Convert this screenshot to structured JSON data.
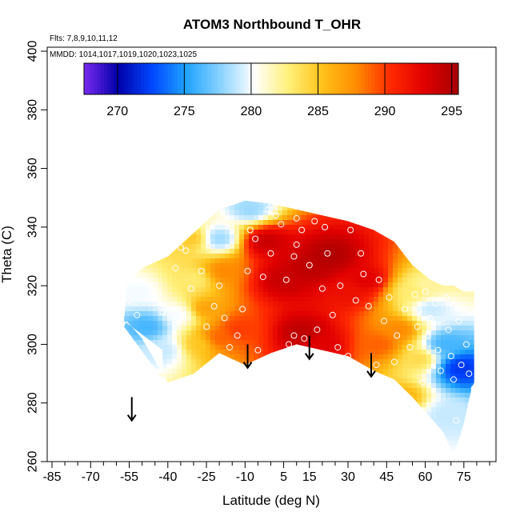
{
  "chart_data": {
    "type": "heatmap",
    "title": "ATOM3 Northbound T_OHR",
    "annotations": {
      "flights": "Flts: 7,8,9,10,11,12",
      "dates": "MMDD: 1014,1017,1019,1020,1023,1025"
    },
    "xlabel": "Latitude (deg N)",
    "ylabel": "Theta (C)",
    "xlim": [
      -85,
      85
    ],
    "ylim": [
      260,
      400
    ],
    "x_ticks": [
      -85,
      -70,
      -55,
      -40,
      -25,
      -10,
      5,
      15,
      30,
      45,
      60,
      75
    ],
    "x_tick_labels": [
      "-85",
      "-70",
      "-55",
      "-40",
      "-25",
      "-10",
      "5",
      "15",
      "30",
      "45",
      "60",
      "75"
    ],
    "y_ticks": [
      260,
      280,
      300,
      320,
      340,
      360,
      380,
      400
    ],
    "y_tick_labels": [
      "260",
      "280",
      "300",
      "320",
      "340",
      "360",
      "380",
      "400"
    ],
    "colorbar": {
      "min": 267.5,
      "max": 295.5,
      "ticks": [
        270,
        275,
        280,
        285,
        290,
        295
      ],
      "tick_labels": [
        "270",
        "275",
        "280",
        "285",
        "290",
        "295"
      ],
      "colors": [
        "#7a2af0",
        "#0000a8",
        "#0047ff",
        "#1fa3ff",
        "#88d2ff",
        "#ffffff",
        "#fff07a",
        "#ffc21a",
        "#ff8c00",
        "#ff2a00",
        "#e10000",
        "#a50000"
      ]
    },
    "coverage_envelope": [
      {
        "lat": -42,
        "top": 298,
        "bottom": 288
      },
      {
        "lat": -57,
        "top": 308,
        "bottom": 306
      },
      {
        "lat": -56,
        "top": 320,
        "bottom": 308
      },
      {
        "lat": -50,
        "top": 326,
        "bottom": 302
      },
      {
        "lat": -40,
        "top": 330,
        "bottom": 287
      },
      {
        "lat": -30,
        "top": 338,
        "bottom": 290
      },
      {
        "lat": -20,
        "top": 346,
        "bottom": 297
      },
      {
        "lat": -10,
        "top": 349,
        "bottom": 293
      },
      {
        "lat": 0,
        "top": 348,
        "bottom": 297
      },
      {
        "lat": 10,
        "top": 346,
        "bottom": 300
      },
      {
        "lat": 20,
        "top": 344,
        "bottom": 298
      },
      {
        "lat": 30,
        "top": 342,
        "bottom": 296
      },
      {
        "lat": 40,
        "top": 339,
        "bottom": 291
      },
      {
        "lat": 48,
        "top": 335,
        "bottom": 288
      },
      {
        "lat": 55,
        "top": 327,
        "bottom": 282
      },
      {
        "lat": 62,
        "top": 322,
        "bottom": 275
      },
      {
        "lat": 67,
        "top": 320,
        "bottom": 270
      },
      {
        "lat": 71,
        "top": 320,
        "bottom": 262
      },
      {
        "lat": 75,
        "top": 318,
        "bottom": 273
      },
      {
        "lat": 78,
        "top": 318,
        "bottom": 285
      },
      {
        "lat": 79,
        "top": 318,
        "bottom": 287
      }
    ],
    "field_blobs": [
      {
        "lat": 5,
        "theta": 322,
        "t": 294,
        "w": 1.0
      },
      {
        "lat": 15,
        "theta": 326,
        "t": 294.5,
        "w": 1.0
      },
      {
        "lat": 23,
        "theta": 330,
        "t": 295,
        "w": 1.0
      },
      {
        "lat": -2,
        "theta": 335,
        "t": 294,
        "w": 0.9
      },
      {
        "lat": 12,
        "theta": 304,
        "t": 294.5,
        "w": 1.0
      },
      {
        "lat": 20,
        "theta": 300,
        "t": 293,
        "w": 0.9
      },
      {
        "lat": 30,
        "theta": 318,
        "t": 292,
        "w": 0.8
      },
      {
        "lat": 37,
        "theta": 322,
        "t": 293,
        "w": 0.8
      },
      {
        "lat": -12,
        "theta": 305,
        "t": 290,
        "w": 0.8
      },
      {
        "lat": -20,
        "theta": 302,
        "t": 289,
        "w": 0.7
      },
      {
        "lat": 42,
        "theta": 300,
        "t": 289,
        "w": 0.8
      },
      {
        "lat": 50,
        "theta": 305,
        "t": 288,
        "w": 0.7
      },
      {
        "lat": -18,
        "theta": 325,
        "t": 288,
        "w": 0.6
      },
      {
        "lat": -30,
        "theta": 336,
        "t": 285,
        "w": 0.5
      },
      {
        "lat": -20,
        "theta": 336,
        "t": 278,
        "w": 0.8
      },
      {
        "lat": -8,
        "theta": 346,
        "t": 278,
        "w": 0.7
      },
      {
        "lat": -30,
        "theta": 322,
        "t": 283,
        "w": 0.6
      },
      {
        "lat": -36,
        "theta": 310,
        "t": 280,
        "w": 0.7
      },
      {
        "lat": -48,
        "theta": 306,
        "t": 276,
        "w": 1.0
      },
      {
        "lat": -42,
        "theta": 298,
        "t": 279,
        "w": 0.9
      },
      {
        "lat": -52,
        "theta": 318,
        "t": 280,
        "w": 0.8
      },
      {
        "lat": -28,
        "theta": 300,
        "t": 285,
        "w": 0.6
      },
      {
        "lat": -26,
        "theta": 312,
        "t": 287,
        "w": 0.4
      },
      {
        "lat": 55,
        "theta": 318,
        "t": 283,
        "w": 0.9
      },
      {
        "lat": 62,
        "theta": 312,
        "t": 279,
        "w": 0.9
      },
      {
        "lat": 68,
        "theta": 300,
        "t": 276,
        "w": 1.0
      },
      {
        "lat": 74,
        "theta": 292,
        "t": 272,
        "w": 1.2
      },
      {
        "lat": 68,
        "theta": 276,
        "t": 279,
        "w": 0.8
      },
      {
        "lat": 58,
        "theta": 295,
        "t": 284,
        "w": 0.7
      },
      {
        "lat": 52,
        "theta": 282,
        "t": 286,
        "w": 0.5
      },
      {
        "lat": 60,
        "theta": 320,
        "t": 282,
        "w": 0.7
      }
    ],
    "observation_points": [
      [
        -53,
        321
      ],
      [
        -55,
        315
      ],
      [
        -52,
        310
      ],
      [
        -45,
        320
      ],
      [
        -44,
        317
      ],
      [
        -42,
        311
      ],
      [
        -37,
        326
      ],
      [
        -35,
        333
      ],
      [
        -33,
        332
      ],
      [
        -31,
        319
      ],
      [
        -27,
        325
      ],
      [
        -25,
        306
      ],
      [
        -22,
        313
      ],
      [
        -20,
        320
      ],
      [
        -18,
        309
      ],
      [
        -16,
        299
      ],
      [
        -13,
        303
      ],
      [
        -11,
        312
      ],
      [
        -9,
        325
      ],
      [
        -8,
        339
      ],
      [
        -6,
        336
      ],
      [
        -5,
        298
      ],
      [
        -3,
        323
      ],
      [
        -1,
        346
      ],
      [
        0,
        331
      ],
      [
        2,
        344
      ],
      [
        4,
        341
      ],
      [
        6,
        322
      ],
      [
        7,
        300
      ],
      [
        9,
        303
      ],
      [
        9,
        330
      ],
      [
        10,
        343
      ],
      [
        10,
        334
      ],
      [
        12,
        339
      ],
      [
        13,
        302
      ],
      [
        14,
        296
      ],
      [
        15,
        327
      ],
      [
        17,
        342
      ],
      [
        18,
        305
      ],
      [
        20,
        319
      ],
      [
        21,
        340
      ],
      [
        22,
        331
      ],
      [
        24,
        310
      ],
      [
        26,
        299
      ],
      [
        27,
        320
      ],
      [
        30,
        296
      ],
      [
        31,
        339
      ],
      [
        33,
        315
      ],
      [
        35,
        331
      ],
      [
        36,
        324
      ],
      [
        38,
        313
      ],
      [
        41,
        293
      ],
      [
        42,
        322
      ],
      [
        44,
        308
      ],
      [
        46,
        316
      ],
      [
        48,
        294
      ],
      [
        49,
        303
      ],
      [
        52,
        312
      ],
      [
        54,
        299
      ],
      [
        56,
        317
      ],
      [
        57,
        306
      ],
      [
        59,
        287
      ],
      [
        60,
        318
      ],
      [
        61,
        303
      ],
      [
        62,
        309
      ],
      [
        64,
        314
      ],
      [
        65,
        298
      ],
      [
        66,
        291
      ],
      [
        68,
        316
      ],
      [
        69,
        305
      ],
      [
        70,
        296
      ],
      [
        71,
        288
      ],
      [
        72,
        274
      ],
      [
        73,
        308
      ],
      [
        74,
        293
      ],
      [
        76,
        300
      ],
      [
        77,
        290
      ],
      [
        79,
        285
      ]
    ],
    "arrow_markers": [
      {
        "lat": -54,
        "theta_tail": 282,
        "theta_head": 274
      },
      {
        "lat": -9,
        "theta_tail": 300,
        "theta_head": 292
      },
      {
        "lat": 15,
        "theta_tail": 303,
        "theta_head": 295
      },
      {
        "lat": 39,
        "theta_tail": 297,
        "theta_head": 289
      }
    ]
  }
}
